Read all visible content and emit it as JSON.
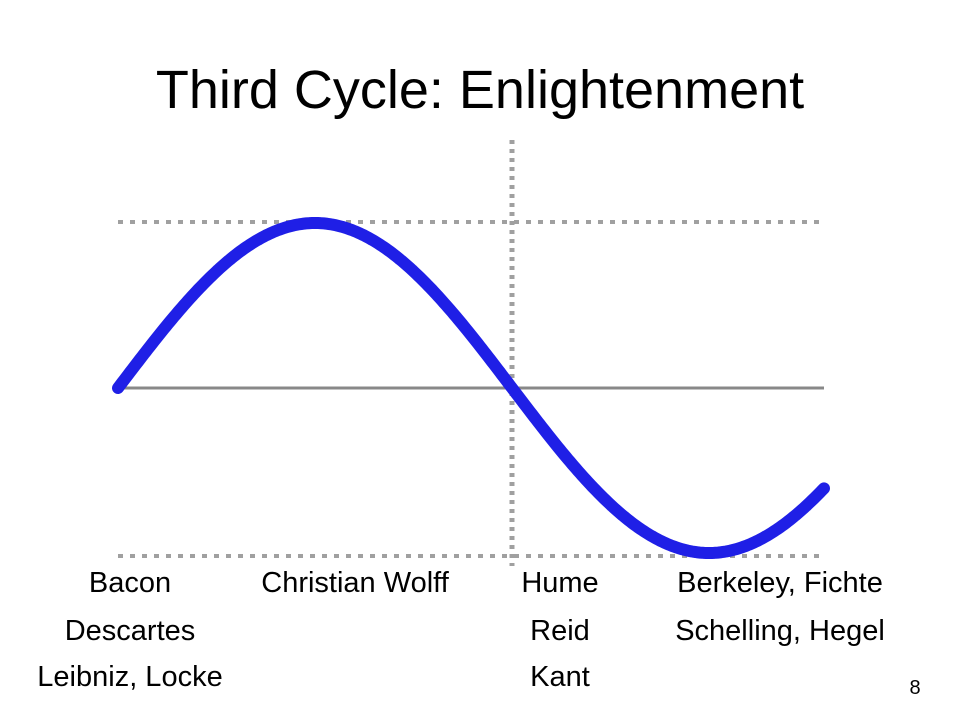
{
  "slide": {
    "title": "Third Cycle: Enlightenment",
    "page_number": "8"
  },
  "labels": {
    "col1": [
      "Bacon",
      "Descartes",
      "Leibniz, Locke"
    ],
    "col2": [
      "Christian Wolff"
    ],
    "col3": [
      "Hume",
      "Reid",
      "Kant"
    ],
    "col4": [
      "Berkeley, Fichte",
      "Schelling, Hegel"
    ]
  },
  "colors": {
    "curve": "#1f1fe6",
    "axis": "#888888",
    "grid": "#a0a0a0"
  }
}
